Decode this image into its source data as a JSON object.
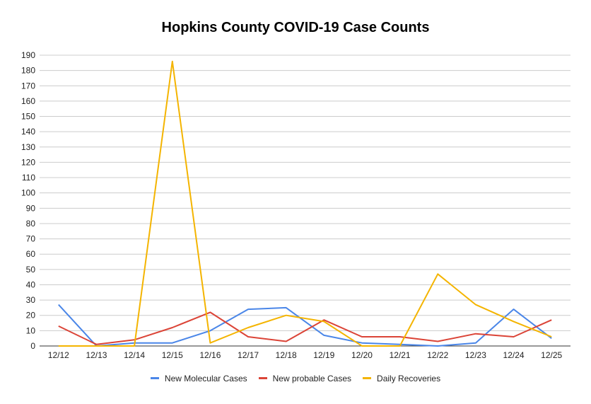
{
  "chart_data": {
    "type": "line",
    "title": "Hopkins County COVID-19 Case Counts",
    "xlabel": "",
    "ylabel": "",
    "categories": [
      "12/12",
      "12/13",
      "12/14",
      "12/15",
      "12/16",
      "12/17",
      "12/18",
      "12/19",
      "12/20",
      "12/21",
      "12/22",
      "12/23",
      "12/24",
      "12/25"
    ],
    "ylim": [
      0,
      190
    ],
    "yticks": [
      0,
      10,
      20,
      30,
      40,
      50,
      60,
      70,
      80,
      90,
      100,
      110,
      120,
      130,
      140,
      150,
      160,
      170,
      180,
      190
    ],
    "grid": true,
    "legend_position": "bottom",
    "series": [
      {
        "name": "New Molecular Cases",
        "color": "#4a86e8",
        "values": [
          27,
          0,
          2,
          2,
          10,
          24,
          25,
          7,
          2,
          1,
          0,
          2,
          24,
          5
        ]
      },
      {
        "name": "New probable Cases",
        "color": "#db4437",
        "values": [
          13,
          1,
          4,
          12,
          22,
          6,
          3,
          17,
          6,
          6,
          3,
          8,
          6,
          17
        ]
      },
      {
        "name": "Daily Recoveries",
        "color": "#f4b400",
        "values": [
          0,
          0,
          0,
          186,
          2,
          12,
          20,
          16,
          0,
          0,
          47,
          27,
          16,
          6
        ]
      }
    ]
  }
}
